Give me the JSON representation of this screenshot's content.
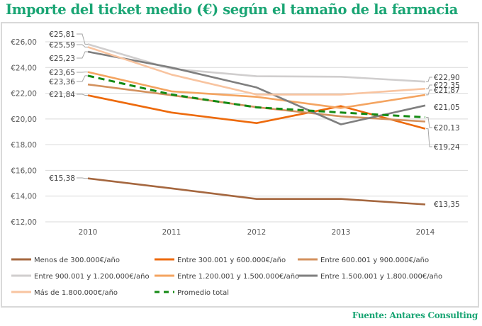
{
  "title": "Importe del ticket medio (€) según el tamaño de la farmacia",
  "source": "Fuente: Antares Consulting",
  "chart_data": {
    "type": "line",
    "title": "Importe del ticket medio (€) según el tamaño de la farmacia",
    "xlabel": "",
    "ylabel": "",
    "categories": [
      "2010",
      "2011",
      "2012",
      "2013",
      "2014"
    ],
    "ylim": [
      12,
      26
    ],
    "yticks": [
      12,
      14,
      16,
      18,
      20,
      22,
      24,
      26
    ],
    "ytick_labels": [
      "€12,00",
      "€14,00",
      "€16,00",
      "€18,00",
      "€20,00",
      "€22,00",
      "€24,00",
      "€26,00"
    ],
    "grid": "horizontal",
    "legend_position": "bottom",
    "series": [
      {
        "name": "Menos de 300.000€/año",
        "color": "#a5673f",
        "dash": false,
        "values": [
          15.38,
          14.6,
          13.78,
          13.78,
          13.35
        ],
        "start_label": "€15,38",
        "end_label": "€13,35"
      },
      {
        "name": "Entre 300.001 y 600.000€/año",
        "color": "#ed6a0c",
        "dash": false,
        "values": [
          21.84,
          20.5,
          19.68,
          21.0,
          19.24
        ],
        "start_label": "€21,84",
        "end_label": "€19,24"
      },
      {
        "name": "Entre 600.001 y 900.000€/año",
        "color": "#d3915e",
        "dash": false,
        "values": [
          22.68,
          21.85,
          20.92,
          20.2,
          19.8
        ],
        "start_label": "",
        "end_label": ""
      },
      {
        "name": "Entre 900.001 y 1.200.000€/año",
        "color": "#d0cece",
        "dash": false,
        "values": [
          25.81,
          23.9,
          23.32,
          23.28,
          22.9
        ],
        "start_label": "€25,81",
        "end_label": "€22,90"
      },
      {
        "name": "Entre 1.200.001 y 1.500.000€/año",
        "color": "#f4a460",
        "dash": false,
        "values": [
          23.65,
          22.15,
          21.72,
          20.85,
          21.87
        ],
        "start_label": "€23,65",
        "end_label": "€21,87"
      },
      {
        "name": "Entre 1.500.001 y 1.800.000€/año",
        "color": "#7f7f7f",
        "dash": false,
        "values": [
          25.23,
          24.0,
          22.45,
          19.58,
          21.05
        ],
        "start_label": "€25,23",
        "end_label": "€21,05"
      },
      {
        "name": "Más de 1.800.000€/año",
        "color": "#f8c4a0",
        "dash": false,
        "values": [
          25.59,
          23.45,
          21.9,
          21.9,
          22.35
        ],
        "start_label": "€25,59",
        "end_label": "€22,35"
      },
      {
        "name": "Promedio total",
        "color": "#138a13",
        "dash": true,
        "values": [
          23.36,
          21.9,
          20.9,
          20.5,
          20.13
        ],
        "start_label": "€23,36",
        "end_label": "€20,13"
      }
    ]
  }
}
